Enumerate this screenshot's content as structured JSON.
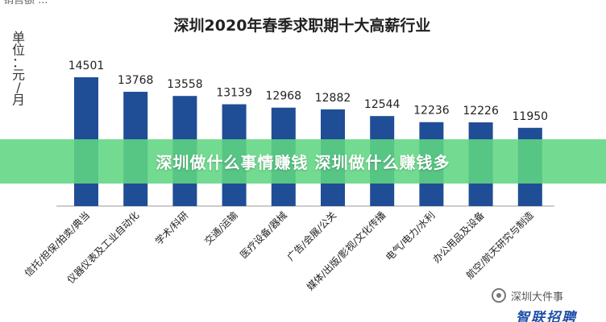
{
  "top_cut_text": "销售额 ...",
  "banner_text": "深圳做什么事情赚钱 深圳做什么赚钱多",
  "watermark_text": "深圳大件事",
  "logo_text": "智联招聘",
  "colors": {
    "bar": "#1f4e96",
    "banner": "#60d682",
    "axis": "#999999"
  },
  "chart_data": {
    "type": "bar",
    "title": "深圳2020年春季求职期十大高薪行业",
    "unit_label": [
      "单",
      "位",
      "：",
      "元",
      "/",
      "月"
    ],
    "categories": [
      "信托/担保/拍卖/典当",
      "仪器仪表及工业自动化",
      "学术/科研",
      "交通/运输",
      "医疗设备/器械",
      "广告/会展/公关",
      "媒体/出版/影视/文化传播",
      "电气/电力/水利",
      "办公用品及设备",
      "航空/航天研究与制造"
    ],
    "values": [
      14501,
      13768,
      13558,
      13139,
      12968,
      12882,
      12544,
      12236,
      12226,
      11950
    ],
    "ylim": [
      8000,
      15000
    ],
    "grid": false,
    "legend": "none"
  }
}
